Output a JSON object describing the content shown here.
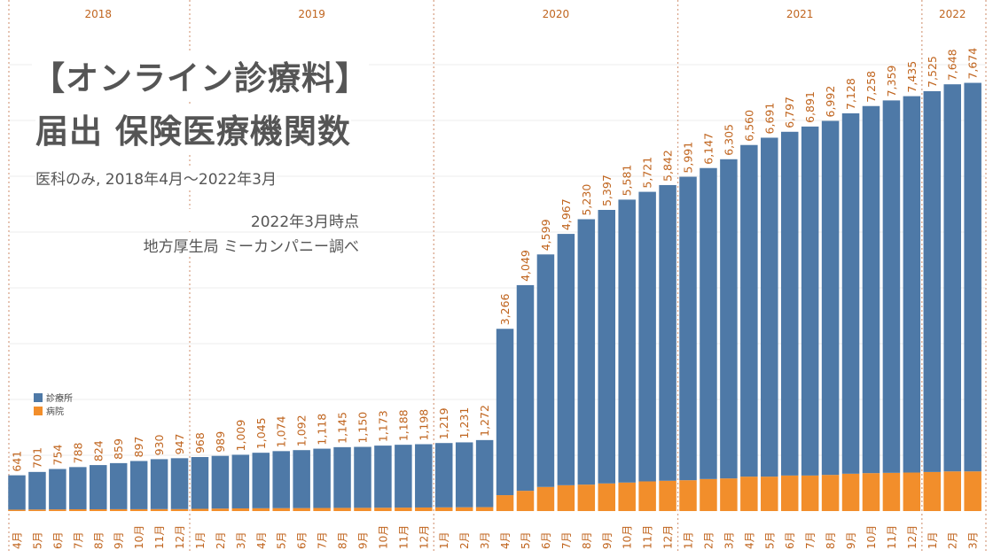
{
  "title_line1": "【オンライン診療料】",
  "title_line2": "届出 保険医療機関数",
  "subtitle": "医科のみ, 2018年4月～2022年3月",
  "as_of": "2022年3月時点",
  "source": "地方厚生局 ミーカンパニー調べ",
  "chart_data": {
    "type": "bar",
    "stacked": true,
    "years": [
      {
        "label": "2018",
        "months": 9
      },
      {
        "label": "2019",
        "months": 12
      },
      {
        "label": "2020",
        "months": 12
      },
      {
        "label": "2021",
        "months": 12
      },
      {
        "label": "2022",
        "months": 3
      }
    ],
    "categories": [
      "4月",
      "5月",
      "6月",
      "7月",
      "8月",
      "9月",
      "10月",
      "11月",
      "12月",
      "1月",
      "2月",
      "3月",
      "4月",
      "5月",
      "6月",
      "7月",
      "8月",
      "9月",
      "10月",
      "11月",
      "12月",
      "1月",
      "2月",
      "3月",
      "4月",
      "5月",
      "6月",
      "7月",
      "8月",
      "9月",
      "10月",
      "11月",
      "12月",
      "1月",
      "2月",
      "3月",
      "4月",
      "5月",
      "6月",
      "7月",
      "8月",
      "9月",
      "10月",
      "11月",
      "12月",
      "1月",
      "2月",
      "3月"
    ],
    "totals": [
      641,
      701,
      754,
      788,
      824,
      859,
      897,
      930,
      947,
      968,
      989,
      1009,
      1045,
      1074,
      1092,
      1118,
      1145,
      1150,
      1173,
      1188,
      1198,
      1219,
      1231,
      1272,
      3266,
      4049,
      4599,
      4967,
      5230,
      5397,
      5581,
      5721,
      5842,
      5991,
      6147,
      6305,
      6560,
      6691,
      6797,
      6891,
      6992,
      7128,
      7258,
      7359,
      7435,
      7525,
      7648,
      7674
    ],
    "series": [
      {
        "name": "診療所",
        "color": "#4e79a7",
        "values": [
          616,
          673,
          724,
          756,
          792,
          826,
          864,
          895,
          912,
          928,
          944,
          961,
          995,
          1022,
          1039,
          1063,
          1088,
          1092,
          1113,
          1126,
          1134,
          1153,
          1163,
          1202,
          2981,
          3686,
          4167,
          4504,
          4756,
          4902,
          5070,
          5189,
          5299,
          5438,
          5573,
          5720,
          5943,
          6074,
          6160,
          6254,
          6344,
          6459,
          6578,
          6674,
          6745,
          6825,
          6937,
          6963
        ]
      },
      {
        "name": "病院",
        "color": "#f28e2b",
        "values": [
          25,
          28,
          30,
          32,
          32,
          33,
          33,
          35,
          35,
          40,
          45,
          48,
          50,
          52,
          53,
          55,
          57,
          58,
          60,
          62,
          64,
          66,
          68,
          70,
          285,
          363,
          432,
          463,
          474,
          495,
          511,
          532,
          543,
          553,
          574,
          585,
          617,
          617,
          637,
          637,
          648,
          669,
          680,
          685,
          690,
          700,
          711,
          711
        ]
      }
    ],
    "ylim": [
      0,
      8300
    ],
    "grid": true,
    "label_color": "#c0651f",
    "legend_placement": "left-middle"
  }
}
